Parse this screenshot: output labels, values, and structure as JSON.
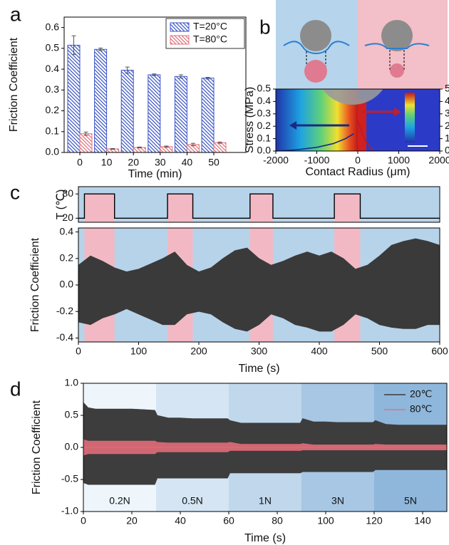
{
  "chart_data": [
    {
      "type": "bar",
      "panel_label": "a",
      "ylabel": "Friction Coefficient",
      "xlabel": "Time (min)",
      "categories": [
        "0",
        "10",
        "20",
        "30",
        "40",
        "50"
      ],
      "series": [
        {
          "name": "T=20°C",
          "color": "#3b55c8",
          "values": [
            0.515,
            0.495,
            0.395,
            0.373,
            0.365,
            0.357
          ],
          "errors": [
            0.045,
            0.006,
            0.015,
            0.004,
            0.008,
            0.004
          ]
        },
        {
          "name": "T=80°C",
          "color": "#e0707a",
          "values": [
            0.09,
            0.017,
            0.024,
            0.028,
            0.038,
            0.047
          ],
          "errors": [
            0.008,
            0.002,
            0.002,
            0.003,
            0.006,
            0.003
          ]
        }
      ],
      "ylim": [
        0,
        0.65
      ],
      "yticks": [
        {
          "value": 0,
          "label": "0.0"
        },
        0.1,
        0.2,
        0.3,
        0.4,
        0.5,
        0.6
      ],
      "legend": "upper right"
    },
    {
      "type": "line",
      "panel_label": "b",
      "ylabel": "Stress (MPa)",
      "xlabel": "Contact Radius (μm)",
      "series": [
        {
          "color": "#1c2a86",
          "x": [
            -2000,
            -1500,
            -1000,
            -600,
            -300,
            -100
          ],
          "values": [
            0,
            0.01,
            0.03,
            0.06,
            0.1,
            0.14
          ]
        },
        {
          "color": "#b81c28",
          "x": [
            0,
            100,
            200,
            300,
            400
          ],
          "values": [
            0.25,
            0.15,
            0.08,
            0.03,
            0
          ]
        }
      ],
      "xlim": [
        -2000,
        2000
      ],
      "xticks": [
        -2000,
        -1000,
        0,
        1000,
        2000
      ],
      "ylim": [
        0,
        0.5
      ],
      "yticks": [
        {
          "value": 0,
          "label": "0.0"
        },
        0.1,
        0.2,
        0.3,
        0.4,
        0.5
      ],
      "y2lim": [
        0,
        5
      ],
      "y2ticks": [
        0,
        1,
        2,
        3,
        4,
        5
      ]
    },
    {
      "type": "line",
      "panel_label": "c",
      "ylabel": "T (℃)",
      "series": [
        {
          "color": "#000000",
          "x": [
            0,
            10,
            10,
            60,
            60,
            148,
            148,
            190,
            190,
            285,
            285,
            323,
            323,
            425,
            425,
            468,
            468,
            600
          ],
          "values": [
            20,
            20,
            80,
            80,
            20,
            20,
            80,
            80,
            20,
            20,
            80,
            80,
            20,
            20,
            80,
            80,
            20,
            20
          ]
        }
      ],
      "xlim": [
        0,
        600
      ],
      "ylim": [
        10,
        98
      ],
      "yticks": [
        20,
        80
      ]
    },
    {
      "type": "area",
      "ylabel": "Friction Coefficient",
      "xlabel": "Time (s)",
      "x": [
        0,
        20,
        40,
        60,
        80,
        100,
        120,
        140,
        160,
        180,
        200,
        220,
        240,
        260,
        280,
        300,
        320,
        340,
        360,
        380,
        400,
        420,
        440,
        460,
        480,
        500,
        520,
        540,
        560,
        580,
        600
      ],
      "series": [
        {
          "color": "#3a3a3a",
          "values": [
            0.15,
            0.22,
            0.18,
            0.13,
            0.1,
            0.12,
            0.16,
            0.2,
            0.25,
            0.15,
            0.1,
            0.13,
            0.2,
            0.26,
            0.28,
            0.2,
            0.15,
            0.18,
            0.22,
            0.25,
            0.22,
            0.25,
            0.2,
            0.12,
            0.15,
            0.22,
            0.3,
            0.33,
            0.35,
            0.33,
            0.3
          ],
          "lower": [
            -0.28,
            -0.3,
            -0.25,
            -0.22,
            -0.18,
            -0.22,
            -0.26,
            -0.3,
            -0.3,
            -0.22,
            -0.2,
            -0.22,
            -0.28,
            -0.33,
            -0.35,
            -0.3,
            -0.22,
            -0.25,
            -0.3,
            -0.32,
            -0.35,
            -0.35,
            -0.3,
            -0.22,
            -0.25,
            -0.3,
            -0.32,
            -0.33,
            -0.33,
            -0.3,
            -0.3
          ]
        }
      ],
      "shaded_regions": [
        [
          10,
          60
        ],
        [
          148,
          190
        ],
        [
          285,
          323
        ],
        [
          425,
          468
        ]
      ],
      "xlim": [
        0,
        600
      ],
      "xticks": [
        0,
        100,
        200,
        300,
        400,
        500,
        600
      ],
      "ylim": [
        -0.43,
        0.43
      ],
      "yticks": [
        -0.4,
        -0.2,
        {
          "value": 0,
          "label": "0.0"
        },
        0.2,
        0.4
      ]
    },
    {
      "type": "area",
      "panel_label": "d",
      "ylabel": "Friction Coefficient",
      "xlabel": "Time (s)",
      "x": [
        0,
        2,
        5,
        10,
        15,
        20,
        25,
        29.5,
        30.5,
        35,
        40,
        45,
        50,
        55,
        59.5,
        60.5,
        65,
        70,
        75,
        80,
        85,
        89.5,
        90.5,
        95,
        100,
        105,
        110,
        115,
        119.5,
        120.5,
        125,
        130,
        135,
        140,
        145,
        150
      ],
      "series": [
        {
          "name": "20℃",
          "color": "#3d3d3d",
          "values": [
            0.7,
            0.62,
            0.6,
            0.6,
            0.6,
            0.6,
            0.59,
            0.58,
            0.5,
            0.46,
            0.46,
            0.45,
            0.45,
            0.45,
            0.45,
            0.42,
            0.38,
            0.38,
            0.38,
            0.38,
            0.38,
            0.38,
            0.45,
            0.4,
            0.4,
            0.39,
            0.39,
            0.39,
            0.39,
            0.42,
            0.36,
            0.35,
            0.35,
            0.35,
            0.35,
            0.35
          ],
          "lower": [
            -0.55,
            -0.58,
            -0.58,
            -0.58,
            -0.58,
            -0.58,
            -0.58,
            -0.58,
            -0.48,
            -0.48,
            -0.48,
            -0.48,
            -0.48,
            -0.48,
            -0.48,
            -0.4,
            -0.4,
            -0.4,
            -0.4,
            -0.4,
            -0.4,
            -0.4,
            -0.38,
            -0.38,
            -0.38,
            -0.38,
            -0.38,
            -0.38,
            -0.38,
            -0.35,
            -0.35,
            -0.35,
            -0.35,
            -0.35,
            -0.35,
            -0.35
          ]
        },
        {
          "name": "80℃",
          "color": "#ea6f7c",
          "values": [
            0.12,
            0.1,
            0.1,
            0.1,
            0.1,
            0.1,
            0.1,
            0.1,
            0.08,
            0.07,
            0.07,
            0.07,
            0.07,
            0.07,
            0.07,
            0.08,
            0.05,
            0.05,
            0.05,
            0.05,
            0.05,
            0.05,
            0.06,
            0.04,
            0.04,
            0.04,
            0.04,
            0.04,
            0.04,
            0.05,
            0.04,
            0.04,
            0.04,
            0.04,
            0.04,
            0.04
          ],
          "lower": [
            -0.12,
            -0.1,
            -0.1,
            -0.1,
            -0.1,
            -0.1,
            -0.1,
            -0.1,
            -0.07,
            -0.07,
            -0.07,
            -0.07,
            -0.07,
            -0.07,
            -0.07,
            -0.05,
            -0.05,
            -0.05,
            -0.05,
            -0.05,
            -0.05,
            -0.05,
            -0.04,
            -0.04,
            -0.04,
            -0.04,
            -0.04,
            -0.04,
            -0.04,
            -0.04,
            -0.04,
            -0.04,
            -0.04,
            -0.04,
            -0.04,
            -0.04
          ]
        }
      ],
      "regions": [
        {
          "range": [
            0,
            30
          ],
          "label": "0.2N",
          "color": "#eef5fb"
        },
        {
          "range": [
            30,
            60
          ],
          "label": "0.5N",
          "color": "#d5e5f3"
        },
        {
          "range": [
            60,
            90
          ],
          "label": "1N",
          "color": "#c0d7ec"
        },
        {
          "range": [
            90,
            120
          ],
          "label": "3N",
          "color": "#a7c7e4"
        },
        {
          "range": [
            120,
            150
          ],
          "label": "5N",
          "color": "#8fb7dc"
        }
      ],
      "xlim": [
        0,
        150
      ],
      "xticks": [
        0,
        20,
        40,
        60,
        80,
        100,
        120,
        140
      ],
      "ylim": [
        -1,
        1
      ],
      "yticks": [
        {
          "value": -1,
          "label": "-1.0"
        },
        -0.5,
        {
          "value": 0,
          "label": "0.0"
        },
        0.5,
        {
          "value": 1,
          "label": "1.0"
        }
      ],
      "legend": "upper right"
    }
  ]
}
